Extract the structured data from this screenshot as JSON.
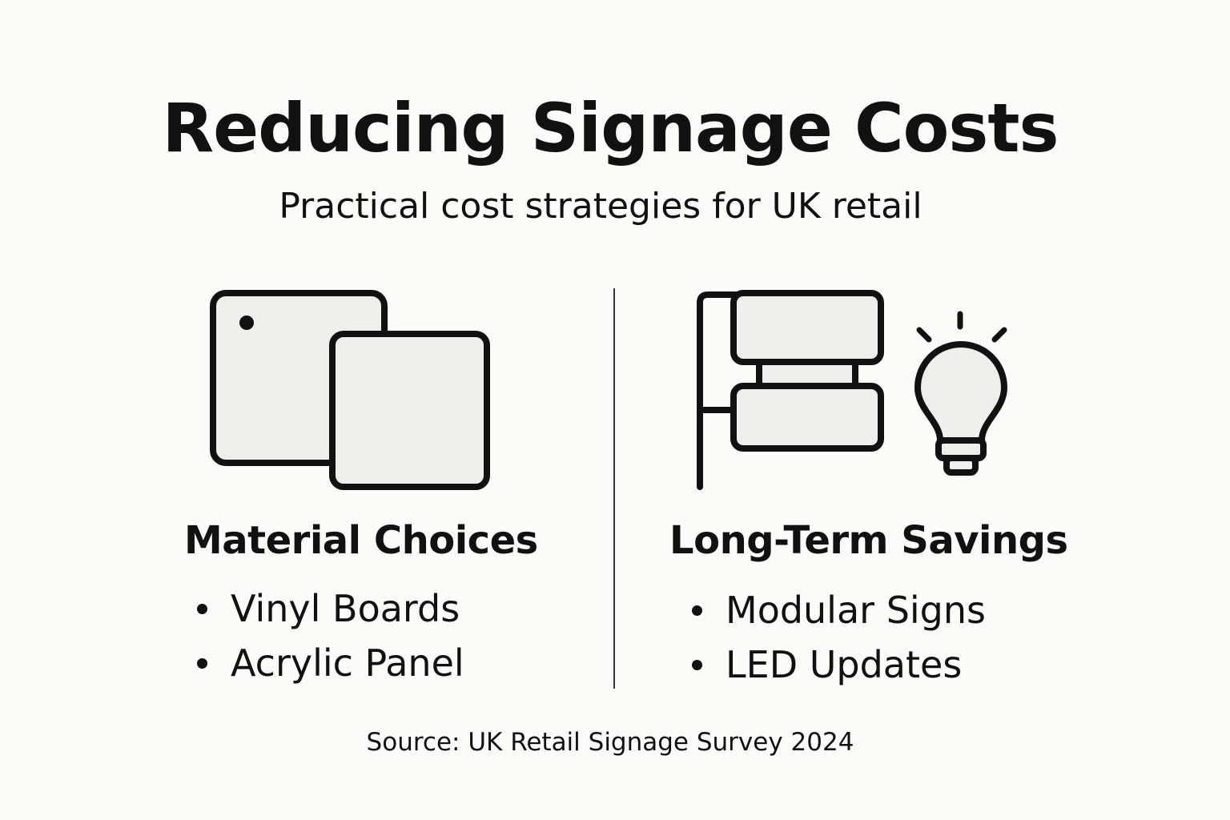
{
  "title": "Reducing Signage Costs",
  "subtitle": "Practical cost strategies for UK retail",
  "colors": {
    "background": "#fcfbf8",
    "text": "#111111",
    "icon_fill": "#efeeeb",
    "stroke": "#111111"
  },
  "columns": [
    {
      "heading": "Material Choices",
      "icons": [
        "overlapping-panels-icon"
      ],
      "items": [
        "Vinyl Boards",
        "Acrylic Panel"
      ]
    },
    {
      "heading": "Long-Term Savings",
      "icons": [
        "modular-sign-icon",
        "light-bulb-icon"
      ],
      "items": [
        "Modular Signs",
        "LED Updates"
      ]
    }
  ],
  "source": "Source: UK Retail Signage Survey 2024"
}
